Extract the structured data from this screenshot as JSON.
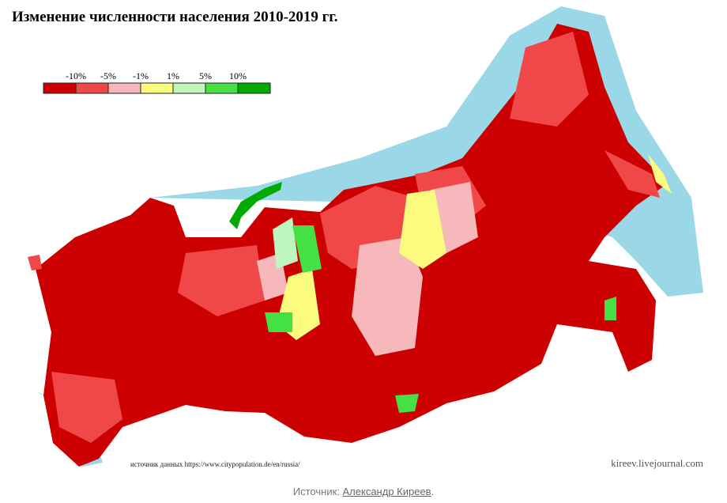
{
  "title": "Изменение численности населения 2010-2019 гг.",
  "legend": {
    "labels": [
      "-10%",
      "-5%",
      "-1%",
      "1%",
      "5%",
      "10%"
    ],
    "colors": [
      "#cc0000",
      "#f04848",
      "#f7b8bc",
      "#fbfb80",
      "#bff5bf",
      "#44e044",
      "#00aa00"
    ]
  },
  "source_note": "источник данных https://www.citypopulation.de/en/russia/",
  "watermark": "kireev.livejournal.com",
  "caption": {
    "label": "Источник:",
    "link": "Александр Киреев",
    "end": "."
  }
}
